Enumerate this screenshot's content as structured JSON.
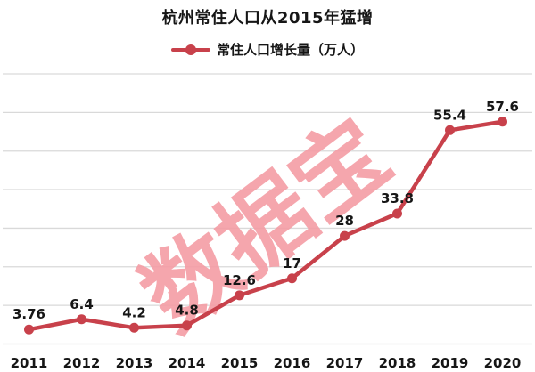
{
  "watermark": {
    "text": "数据宝"
  },
  "colors": {
    "background": "#ffffff",
    "line": "#c8414b",
    "grid": "#d9d9d9",
    "axis": "#d9d9d9",
    "text": "#161616",
    "watermark": "#f49aa2"
  },
  "chart_data": {
    "type": "line",
    "title": "杭州常住人口从2015年猛增",
    "categories": [
      "2011",
      "2012",
      "2013",
      "2014",
      "2015",
      "2016",
      "2017",
      "2018",
      "2019",
      "2020"
    ],
    "series": [
      {
        "name": "常住人口增长量（万人）",
        "values": [
          3.76,
          6.4,
          4.2,
          4.8,
          12.6,
          17,
          28,
          33.8,
          55.4,
          57.6
        ]
      }
    ],
    "xlabel": "",
    "ylabel": "",
    "ylim": [
      0,
      70
    ],
    "grid_interval": 10,
    "grid": true,
    "y_axis_labels_shown": false,
    "data_labels_shown": true,
    "legend_position": "top-center",
    "marker": "circle"
  }
}
